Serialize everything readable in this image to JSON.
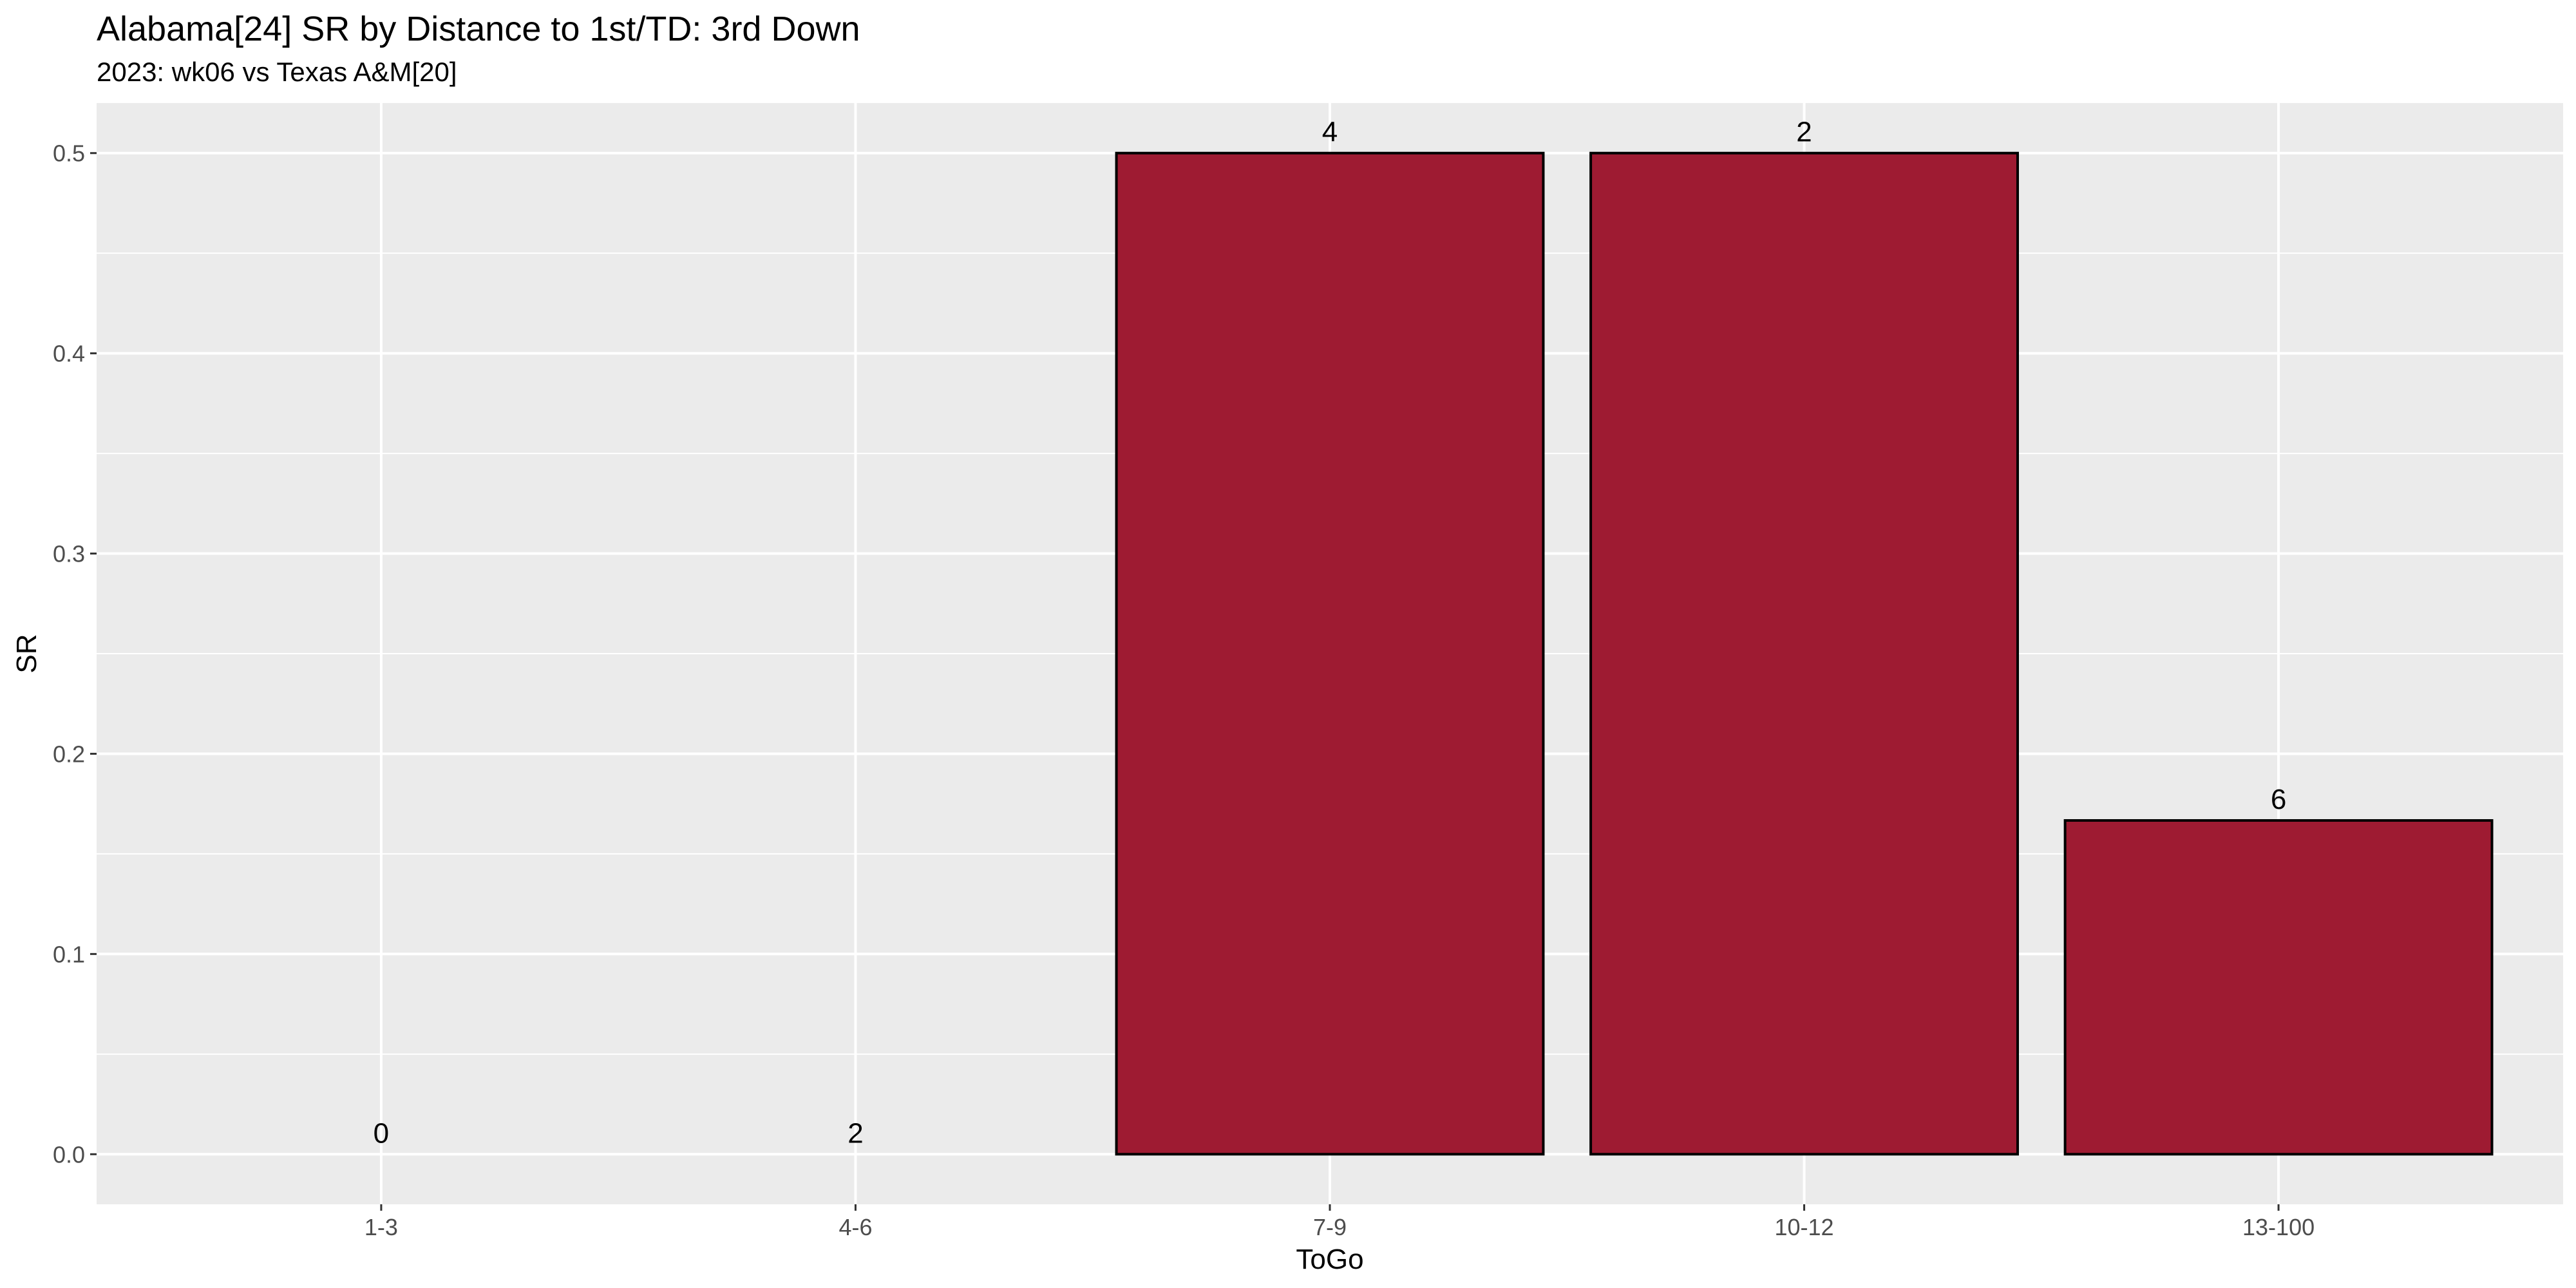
{
  "title": "Alabama[24] SR by Distance to 1st/TD: 3rd Down",
  "subtitle": "2023: wk06 vs Texas A&M[20]",
  "chart_data": {
    "type": "bar",
    "categories": [
      "1-3",
      "4-6",
      "7-9",
      "10-12",
      "13-100"
    ],
    "values": [
      0.0,
      0.0,
      0.5,
      0.5,
      0.1667
    ],
    "bar_labels": [
      "0",
      "2",
      "4",
      "2",
      "6"
    ],
    "xlabel": "ToGo",
    "ylabel": "SR",
    "ylim": [
      -0.025,
      0.525
    ],
    "yticks": [
      0.0,
      0.1,
      0.2,
      0.3,
      0.4,
      0.5
    ],
    "ytick_labels": [
      "0.0",
      "0.1",
      "0.2",
      "0.3",
      "0.4",
      "0.5"
    ],
    "grid": true,
    "colors": {
      "bar_fill": "#9e1b32",
      "bar_stroke": "#000000",
      "panel_bg": "#ebebeb",
      "grid_major": "#ffffff",
      "tick_text": "#4d4d4d"
    }
  }
}
